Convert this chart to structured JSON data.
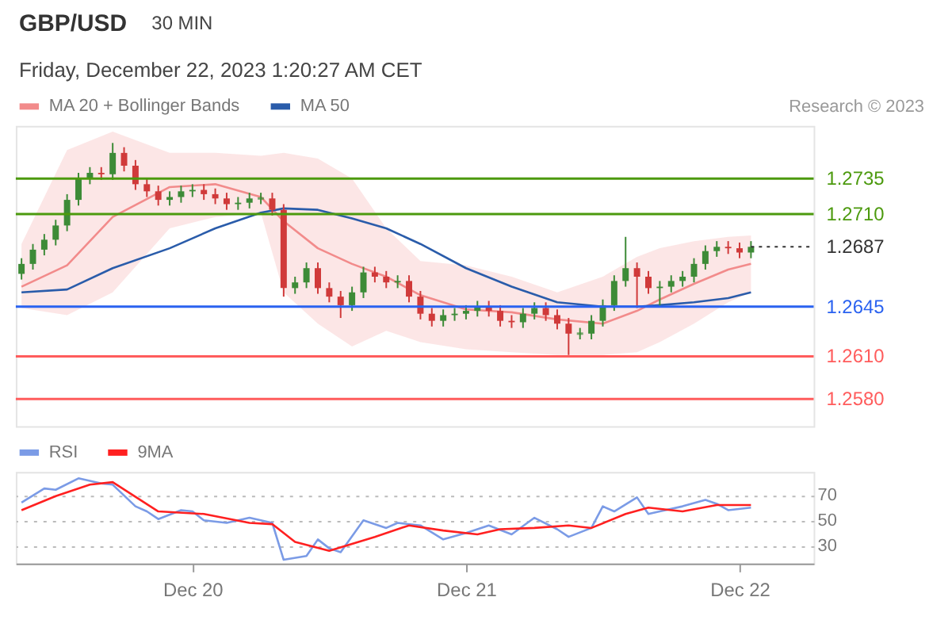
{
  "chart_data": [
    {
      "type": "candlestick",
      "title": "GBP/USD",
      "subtitle": "Friday, December 22, 2023 1:20:27 AM CET",
      "annotations": [
        "30 MIN",
        "Research © 2023"
      ],
      "x": [
        "2023-12-19T09:00",
        "2023-12-19T10:00",
        "2023-12-19T11:00",
        "2023-12-19T12:00",
        "2023-12-19T13:00",
        "2023-12-19T14:00",
        "2023-12-19T15:00",
        "2023-12-19T16:00",
        "2023-12-19T17:00",
        "2023-12-19T18:00",
        "2023-12-19T19:00",
        "2023-12-19T20:00",
        "2023-12-19T21:00",
        "2023-12-19T22:00",
        "2023-12-19T23:00",
        "2023-12-20T00:00",
        "2023-12-20T01:00",
        "2023-12-20T02:00",
        "2023-12-20T03:00",
        "2023-12-20T04:00",
        "2023-12-20T05:00",
        "2023-12-20T06:00",
        "2023-12-20T07:00",
        "2023-12-20T08:00",
        "2023-12-20T09:00",
        "2023-12-20T10:00",
        "2023-12-20T11:00",
        "2023-12-20T12:00",
        "2023-12-20T13:00",
        "2023-12-20T14:00",
        "2023-12-20T15:00",
        "2023-12-20T16:00",
        "2023-12-20T17:00",
        "2023-12-20T18:00",
        "2023-12-20T19:00",
        "2023-12-20T20:00",
        "2023-12-20T21:00",
        "2023-12-20T22:00",
        "2023-12-20T23:00",
        "2023-12-21T00:00",
        "2023-12-21T01:00",
        "2023-12-21T02:00",
        "2023-12-21T03:00",
        "2023-12-21T04:00",
        "2023-12-21T05:00",
        "2023-12-21T06:00",
        "2023-12-21T07:00",
        "2023-12-21T08:00",
        "2023-12-21T09:00",
        "2023-12-21T10:00",
        "2023-12-21T11:00",
        "2023-12-21T12:00",
        "2023-12-21T13:00",
        "2023-12-21T14:00",
        "2023-12-21T15:00",
        "2023-12-21T16:00",
        "2023-12-21T17:00",
        "2023-12-21T18:00",
        "2023-12-21T19:00",
        "2023-12-21T20:00",
        "2023-12-21T21:00",
        "2023-12-21T22:00",
        "2023-12-21T23:00",
        "2023-12-22T00:00",
        "2023-12-22T01:00"
      ],
      "ohlc": [
        [
          1.2668,
          1.2679,
          1.2664,
          1.2675
        ],
        [
          1.2675,
          1.2689,
          1.2671,
          1.2685
        ],
        [
          1.2685,
          1.2696,
          1.2681,
          1.2692
        ],
        [
          1.2692,
          1.2706,
          1.2688,
          1.2702
        ],
        [
          1.2702,
          1.2724,
          1.2698,
          1.272
        ],
        [
          1.272,
          1.2739,
          1.2716,
          1.2735
        ],
        [
          1.2735,
          1.2743,
          1.2731,
          1.2739
        ],
        [
          1.2739,
          1.2743,
          1.2734,
          1.2738
        ],
        [
          1.2738,
          1.276,
          1.2734,
          1.2753
        ],
        [
          1.2753,
          1.2757,
          1.274,
          1.2744
        ],
        [
          1.2744,
          1.2748,
          1.2727,
          1.2731
        ],
        [
          1.2731,
          1.2735,
          1.2722,
          1.2726
        ],
        [
          1.2726,
          1.273,
          1.2716,
          1.272
        ],
        [
          1.272,
          1.2726,
          1.2716,
          1.2722
        ],
        [
          1.2722,
          1.273,
          1.2718,
          1.2726
        ],
        [
          1.2726,
          1.2731,
          1.2722,
          1.2727
        ],
        [
          1.2727,
          1.2731,
          1.272,
          1.2724
        ],
        [
          1.2724,
          1.2728,
          1.2717,
          1.2721
        ],
        [
          1.2721,
          1.2725,
          1.2713,
          1.2717
        ],
        [
          1.2717,
          1.2722,
          1.2713,
          1.2718
        ],
        [
          1.2718,
          1.2725,
          1.2714,
          1.2721
        ],
        [
          1.2721,
          1.2725,
          1.2717,
          1.2721
        ],
        [
          1.2721,
          1.2725,
          1.2709,
          1.2713
        ],
        [
          1.2713,
          1.2717,
          1.2652,
          1.2658
        ],
        [
          1.2658,
          1.2666,
          1.2654,
          1.2662
        ],
        [
          1.2662,
          1.2676,
          1.2658,
          1.2672
        ],
        [
          1.2672,
          1.2676,
          1.2654,
          1.2658
        ],
        [
          1.2658,
          1.2662,
          1.2648,
          1.2652
        ],
        [
          1.2652,
          1.2656,
          1.2637,
          1.2646
        ],
        [
          1.2646,
          1.2659,
          1.2642,
          1.2655
        ],
        [
          1.2655,
          1.2673,
          1.2651,
          1.2669
        ],
        [
          1.2669,
          1.2673,
          1.2662,
          1.2666
        ],
        [
          1.2666,
          1.267,
          1.2658,
          1.2662
        ],
        [
          1.2662,
          1.2667,
          1.2658,
          1.2663
        ],
        [
          1.2663,
          1.2667,
          1.2648,
          1.2652
        ],
        [
          1.2652,
          1.2656,
          1.2636,
          1.264
        ],
        [
          1.264,
          1.2644,
          1.2631,
          1.2635
        ],
        [
          1.2635,
          1.2643,
          1.2631,
          1.2639
        ],
        [
          1.2639,
          1.2644,
          1.2635,
          1.264
        ],
        [
          1.264,
          1.2646,
          1.2636,
          1.2642
        ],
        [
          1.2642,
          1.2649,
          1.2638,
          1.2645
        ],
        [
          1.2645,
          1.2649,
          1.2638,
          1.2642
        ],
        [
          1.2642,
          1.2646,
          1.2631,
          1.2635
        ],
        [
          1.2635,
          1.2639,
          1.263,
          1.2634
        ],
        [
          1.2634,
          1.2644,
          1.263,
          1.264
        ],
        [
          1.264,
          1.2648,
          1.2636,
          1.2644
        ],
        [
          1.2644,
          1.2648,
          1.2635,
          1.2639
        ],
        [
          1.2639,
          1.2643,
          1.2629,
          1.2633
        ],
        [
          1.2633,
          1.2637,
          1.2611,
          1.2626
        ],
        [
          1.2626,
          1.263,
          1.2622,
          1.2626
        ],
        [
          1.2626,
          1.2639,
          1.2622,
          1.2635
        ],
        [
          1.2635,
          1.265,
          1.2631,
          1.2646
        ],
        [
          1.2646,
          1.2667,
          1.2642,
          1.2663
        ],
        [
          1.2663,
          1.2694,
          1.2659,
          1.2672
        ],
        [
          1.2672,
          1.2676,
          1.2644,
          1.2666
        ],
        [
          1.2666,
          1.267,
          1.2654,
          1.2658
        ],
        [
          1.2658,
          1.2663,
          1.2645,
          1.2659
        ],
        [
          1.2659,
          1.2667,
          1.2655,
          1.2663
        ],
        [
          1.2663,
          1.267,
          1.2659,
          1.2666
        ],
        [
          1.2666,
          1.2679,
          1.2662,
          1.2675
        ],
        [
          1.2675,
          1.2688,
          1.2671,
          1.2684
        ],
        [
          1.2684,
          1.2691,
          1.268,
          1.2687
        ],
        [
          1.2687,
          1.2691,
          1.2682,
          1.2686
        ],
        [
          1.2686,
          1.269,
          1.2679,
          1.2683
        ],
        [
          1.2683,
          1.2691,
          1.2679,
          1.2687
        ]
      ],
      "xlim": [
        "2023-12-19T08:30",
        "2023-12-22T06:30"
      ],
      "ylim": [
        1.2561,
        1.2772
      ],
      "tick_labels": false,
      "legend": "top left",
      "series": [
        {
          "name": "MA 20 + Bollinger Bands",
          "type": "line",
          "color": "#f28b8b",
          "x": [
            "2023-12-19T09:00",
            "2023-12-19T13:00",
            "2023-12-19T17:00",
            "2023-12-19T22:00",
            "2023-12-20T02:00",
            "2023-12-20T06:00",
            "2023-12-20T08:00",
            "2023-12-20T11:00",
            "2023-12-20T14:00",
            "2023-12-20T17:00",
            "2023-12-20T20:00",
            "2023-12-21T00:00",
            "2023-12-21T04:00",
            "2023-12-21T08:00",
            "2023-12-21T12:00",
            "2023-12-21T15:00",
            "2023-12-21T17:00",
            "2023-12-21T20:00",
            "2023-12-21T23:00",
            "2023-12-22T01:00"
          ],
          "values": [
            1.2659,
            1.2674,
            1.2708,
            1.2729,
            1.2731,
            1.2722,
            1.2705,
            1.2686,
            1.2675,
            1.2666,
            1.2653,
            1.2643,
            1.2641,
            1.2636,
            1.2633,
            1.2642,
            1.265,
            1.2661,
            1.2671,
            1.2675
          ],
          "lower": [
            1.2644,
            1.2639,
            1.2655,
            1.27,
            1.2708,
            1.2711,
            1.2655,
            1.2633,
            1.2617,
            1.2628,
            1.262,
            1.2615,
            1.2613,
            1.2611,
            1.2611,
            1.2613,
            1.262,
            1.2633,
            1.2648,
            1.2655
          ],
          "upper": [
            1.2689,
            1.2755,
            1.2768,
            1.2753,
            1.2753,
            1.2751,
            1.2753,
            1.2749,
            1.2735,
            1.27,
            1.2677,
            1.2674,
            1.2666,
            1.2655,
            1.2666,
            1.268,
            1.2686,
            1.2691,
            1.2694,
            1.2695
          ]
        },
        {
          "name": "MA 50",
          "type": "line",
          "color": "#2a5caa",
          "x": [
            "2023-12-19T09:00",
            "2023-12-19T13:00",
            "2023-12-19T17:00",
            "2023-12-19T22:00",
            "2023-12-20T02:00",
            "2023-12-20T06:00",
            "2023-12-20T08:00",
            "2023-12-20T11:00",
            "2023-12-20T14:00",
            "2023-12-20T17:00",
            "2023-12-20T20:00",
            "2023-12-21T00:00",
            "2023-12-21T04:00",
            "2023-12-21T08:00",
            "2023-12-21T12:00",
            "2023-12-21T15:00",
            "2023-12-21T17:00",
            "2023-12-21T20:00",
            "2023-12-21T23:00",
            "2023-12-22T01:00"
          ],
          "values": [
            1.2655,
            1.2657,
            1.2672,
            1.2686,
            1.27,
            1.2711,
            1.2714,
            1.2713,
            1.2707,
            1.27,
            1.2689,
            1.2672,
            1.2659,
            1.2648,
            1.2645,
            1.2645,
            1.2646,
            1.2648,
            1.2651,
            1.2655
          ]
        }
      ],
      "ref_lines": [
        {
          "axis": "y",
          "value": 1.2735,
          "label": "1.2735",
          "color": "#4c9a0e",
          "line_style": "solid"
        },
        {
          "axis": "y",
          "value": 1.271,
          "label": "1.2710",
          "color": "#4c9a0e",
          "line_style": "solid"
        },
        {
          "axis": "y",
          "value": 1.2687,
          "label": "1.2687",
          "color": "#333333",
          "line_style": "dotted"
        },
        {
          "axis": "y",
          "value": 1.2645,
          "label": "1.2645",
          "color": "#2a62f0",
          "line_style": "solid"
        },
        {
          "axis": "y",
          "value": 1.261,
          "label": "1.2610",
          "color": "#ff5c5c",
          "line_style": "solid"
        },
        {
          "axis": "y",
          "value": 1.258,
          "label": "1.2580",
          "color": "#ff5c5c",
          "line_style": "solid"
        }
      ]
    },
    {
      "type": "line",
      "xlim": [
        "2023-12-19T08:30",
        "2023-12-22T06:30"
      ],
      "ylim": [
        16,
        88
      ],
      "yticks": [
        30,
        50,
        70
      ],
      "xticks": [
        {
          "value": "2023-12-20",
          "label": "Dec 20"
        },
        {
          "value": "2023-12-21",
          "label": "Dec 21"
        },
        {
          "value": "2023-12-22",
          "label": "Dec 22"
        }
      ],
      "grid": "y",
      "legend": "top left",
      "series": [
        {
          "name": "RSI",
          "color": "#7b9be6",
          "x": [
            "2023-12-19T09:00",
            "2023-12-19T11:00",
            "2023-12-19T12:00",
            "2023-12-19T14:00",
            "2023-12-19T16:00",
            "2023-12-19T17:00",
            "2023-12-19T19:00",
            "2023-12-19T20:00",
            "2023-12-19T21:00",
            "2023-12-19T23:00",
            "2023-12-20T00:00",
            "2023-12-20T01:00",
            "2023-12-20T03:00",
            "2023-12-20T05:00",
            "2023-12-20T07:00",
            "2023-12-20T08:00",
            "2023-12-20T10:00",
            "2023-12-20T11:00",
            "2023-12-20T12:00",
            "2023-12-20T13:00",
            "2023-12-20T15:00",
            "2023-12-20T17:00",
            "2023-12-20T18:00",
            "2023-12-20T20:00",
            "2023-12-20T22:00",
            "2023-12-21T00:00",
            "2023-12-21T02:00",
            "2023-12-21T04:00",
            "2023-12-21T06:00",
            "2023-12-21T08:00",
            "2023-12-21T09:00",
            "2023-12-21T11:00",
            "2023-12-21T12:00",
            "2023-12-21T13:00",
            "2023-12-21T15:00",
            "2023-12-21T16:00",
            "2023-12-21T17:00",
            "2023-12-21T19:00",
            "2023-12-21T21:00",
            "2023-12-21T22:00",
            "2023-12-21T23:00",
            "2023-12-22T01:00"
          ],
          "values": [
            64,
            75,
            74,
            83,
            79,
            78,
            61,
            57,
            51,
            58,
            57,
            50,
            48,
            52,
            48,
            19,
            22,
            35,
            28,
            25,
            50,
            44,
            48,
            46,
            35,
            40,
            46,
            39,
            52,
            43,
            37,
            44,
            61,
            57,
            68,
            55,
            57,
            61,
            66,
            63,
            58,
            60
          ]
        },
        {
          "name": "9MA",
          "color": "#ff2020",
          "x": [
            "2023-12-19T09:00",
            "2023-12-19T12:00",
            "2023-12-19T15:00",
            "2023-12-19T17:00",
            "2023-12-19T21:00",
            "2023-12-20T01:00",
            "2023-12-20T05:00",
            "2023-12-20T07:00",
            "2023-12-20T09:00",
            "2023-12-20T12:00",
            "2023-12-20T16:00",
            "2023-12-20T19:00",
            "2023-12-20T22:00",
            "2023-12-21T01:00",
            "2023-12-21T03:00",
            "2023-12-21T06:00",
            "2023-12-21T09:00",
            "2023-12-21T11:00",
            "2023-12-21T14:00",
            "2023-12-21T16:00",
            "2023-12-21T19:00",
            "2023-12-21T22:00",
            "2023-12-22T01:00"
          ],
          "values": [
            58,
            69,
            78,
            80,
            57,
            55,
            48,
            47,
            33,
            26,
            37,
            46,
            42,
            39,
            43,
            44,
            46,
            44,
            55,
            60,
            57,
            62,
            62
          ]
        }
      ]
    }
  ]
}
